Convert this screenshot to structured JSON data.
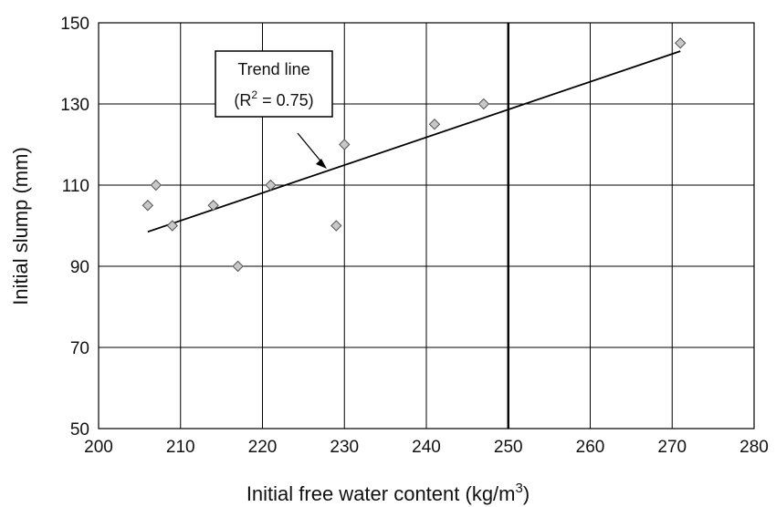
{
  "chart_data": {
    "type": "scatter",
    "title": "",
    "xlabel": "Initial free water content (kg/m",
    "xlabel_sup": "3",
    "xlabel_end": ")",
    "ylabel": "Initial slump (mm)",
    "xlim": [
      200,
      280
    ],
    "ylim": [
      50,
      150
    ],
    "x_ticks": [
      200,
      210,
      220,
      230,
      240,
      250,
      260,
      270,
      280
    ],
    "y_ticks": [
      50,
      70,
      90,
      110,
      130,
      150
    ],
    "grid": true,
    "points": [
      {
        "x": 206,
        "y": 105
      },
      {
        "x": 207,
        "y": 110
      },
      {
        "x": 209,
        "y": 100
      },
      {
        "x": 214,
        "y": 105
      },
      {
        "x": 217,
        "y": 90
      },
      {
        "x": 221,
        "y": 110
      },
      {
        "x": 229,
        "y": 100
      },
      {
        "x": 230,
        "y": 120
      },
      {
        "x": 241,
        "y": 125
      },
      {
        "x": 247,
        "y": 130
      },
      {
        "x": 271,
        "y": 145
      }
    ],
    "trend_line": {
      "x": [
        206,
        271
      ],
      "y": [
        98.5,
        143
      ]
    },
    "emphasized_vertical_line_x": 250,
    "annotation": {
      "line1": "Trend line",
      "line2_prefix": "(R",
      "line2_sup": "2",
      "line2_suffix": " = 0.75)"
    },
    "colors": {
      "marker_fill": "#c8c8c8",
      "marker_stroke": "#555555",
      "line": "#000000",
      "grid": "#000000"
    }
  }
}
